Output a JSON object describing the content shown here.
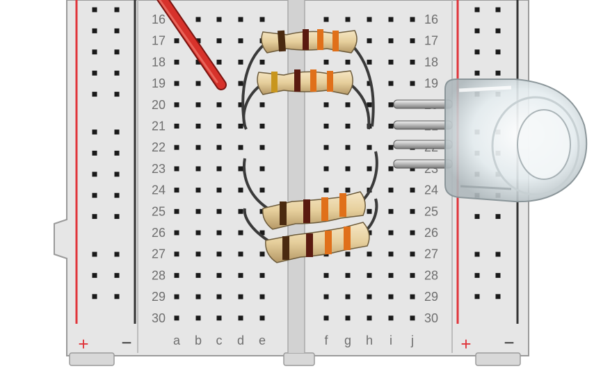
{
  "breadboard": {
    "row_numbers": [
      "16",
      "17",
      "18",
      "19",
      "20",
      "21",
      "22",
      "23",
      "24",
      "25",
      "26",
      "27",
      "28",
      "29",
      "30"
    ],
    "left_columns": [
      "a",
      "b",
      "c",
      "d",
      "e"
    ],
    "right_columns": [
      "f",
      "g",
      "h",
      "i",
      "j"
    ],
    "rail_plus_symbol": "+",
    "rail_minus_symbol": "−",
    "colors": {
      "board": "#e6e6e6",
      "board_edge": "#9a9a9a",
      "rail_red": "#e0343a",
      "rail_dark": "#333333",
      "hole": "#1a1a1a",
      "label": "#6e6e6e"
    }
  },
  "components": {
    "wire_color": "#d7322b",
    "resistor_count": 4,
    "resistor_bands": [
      "#5a1a10",
      "#e0701a",
      "#e0701a",
      "#c8961e"
    ],
    "led": "clear-rgb-led-4-pin"
  }
}
